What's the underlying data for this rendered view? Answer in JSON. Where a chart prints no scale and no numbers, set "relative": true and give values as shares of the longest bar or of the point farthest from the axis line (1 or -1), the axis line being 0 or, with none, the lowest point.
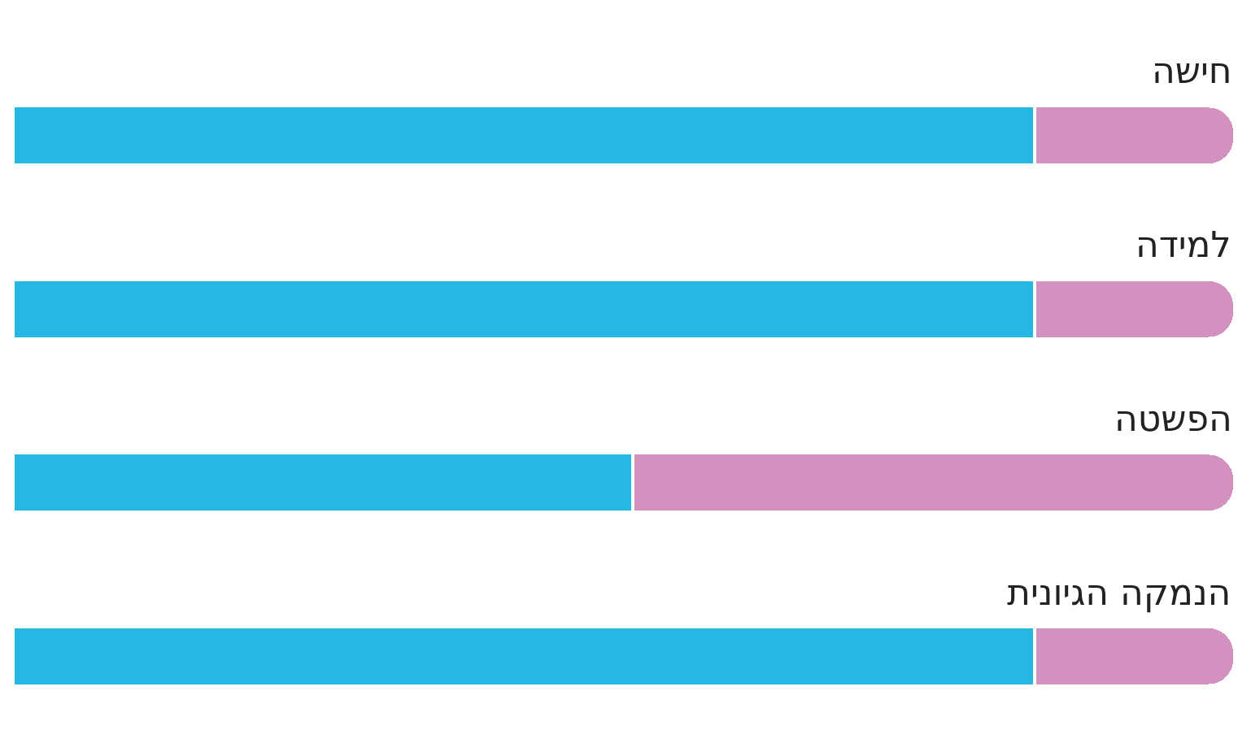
{
  "chart_data": {
    "type": "bar",
    "orientation": "horizontal",
    "stacked": true,
    "relative": true,
    "categories": [
      "חישה",
      "למידה",
      "הפשטה",
      "הנמקה הגיונית"
    ],
    "series": [
      {
        "color": "#24b8e3",
        "values": [
          0.836,
          0.836,
          0.507,
          0.836
        ]
      },
      {
        "color": "#d291be",
        "values": [
          0.164,
          0.164,
          0.493,
          0.164
        ]
      }
    ]
  }
}
